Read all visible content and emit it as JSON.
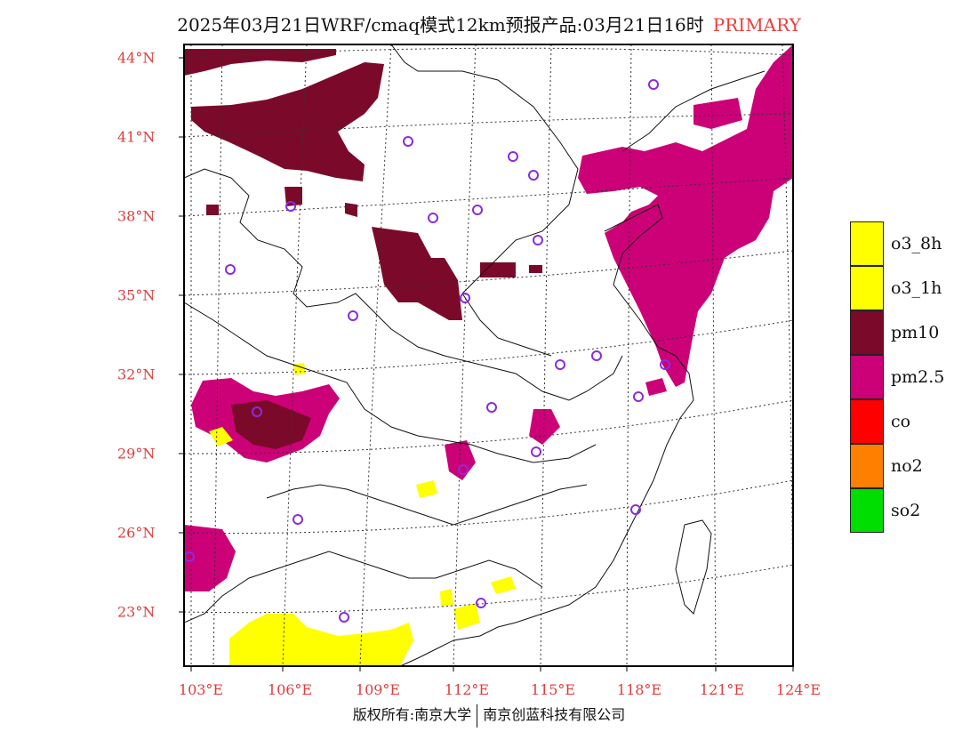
{
  "title": {
    "main": "2025年03月21日WRF/cmaq模式12km预报产品:03月21日16时",
    "badge": "PRIMARY"
  },
  "axes": {
    "lat_labels": [
      "44°N",
      "41°N",
      "38°N",
      "35°N",
      "32°N",
      "29°N",
      "26°N",
      "23°N"
    ],
    "lon_labels": [
      "103°E",
      "106°E",
      "109°E",
      "112°E",
      "115°E",
      "118°E",
      "121°E",
      "124°E"
    ]
  },
  "legend": [
    {
      "label": "o3_8h",
      "color": "#ffff00"
    },
    {
      "label": "o3_1h",
      "color": "#ffff00"
    },
    {
      "label": "pm10",
      "color": "#7b0a2a"
    },
    {
      "label": "pm2.5",
      "color": "#cc0077"
    },
    {
      "label": "co",
      "color": "#ff0000"
    },
    {
      "label": "no2",
      "color": "#ff8000"
    },
    {
      "label": "so2",
      "color": "#00dd00"
    }
  ],
  "footer": {
    "left": "版权所有:南京大学",
    "right": "南京创蓝科技有限公司"
  },
  "colors": {
    "pm10": "#7b0a2a",
    "pm25": "#cc0077",
    "o3": "#ffff00",
    "station": "#8a2be2",
    "axis_label": "#e03c3c"
  }
}
